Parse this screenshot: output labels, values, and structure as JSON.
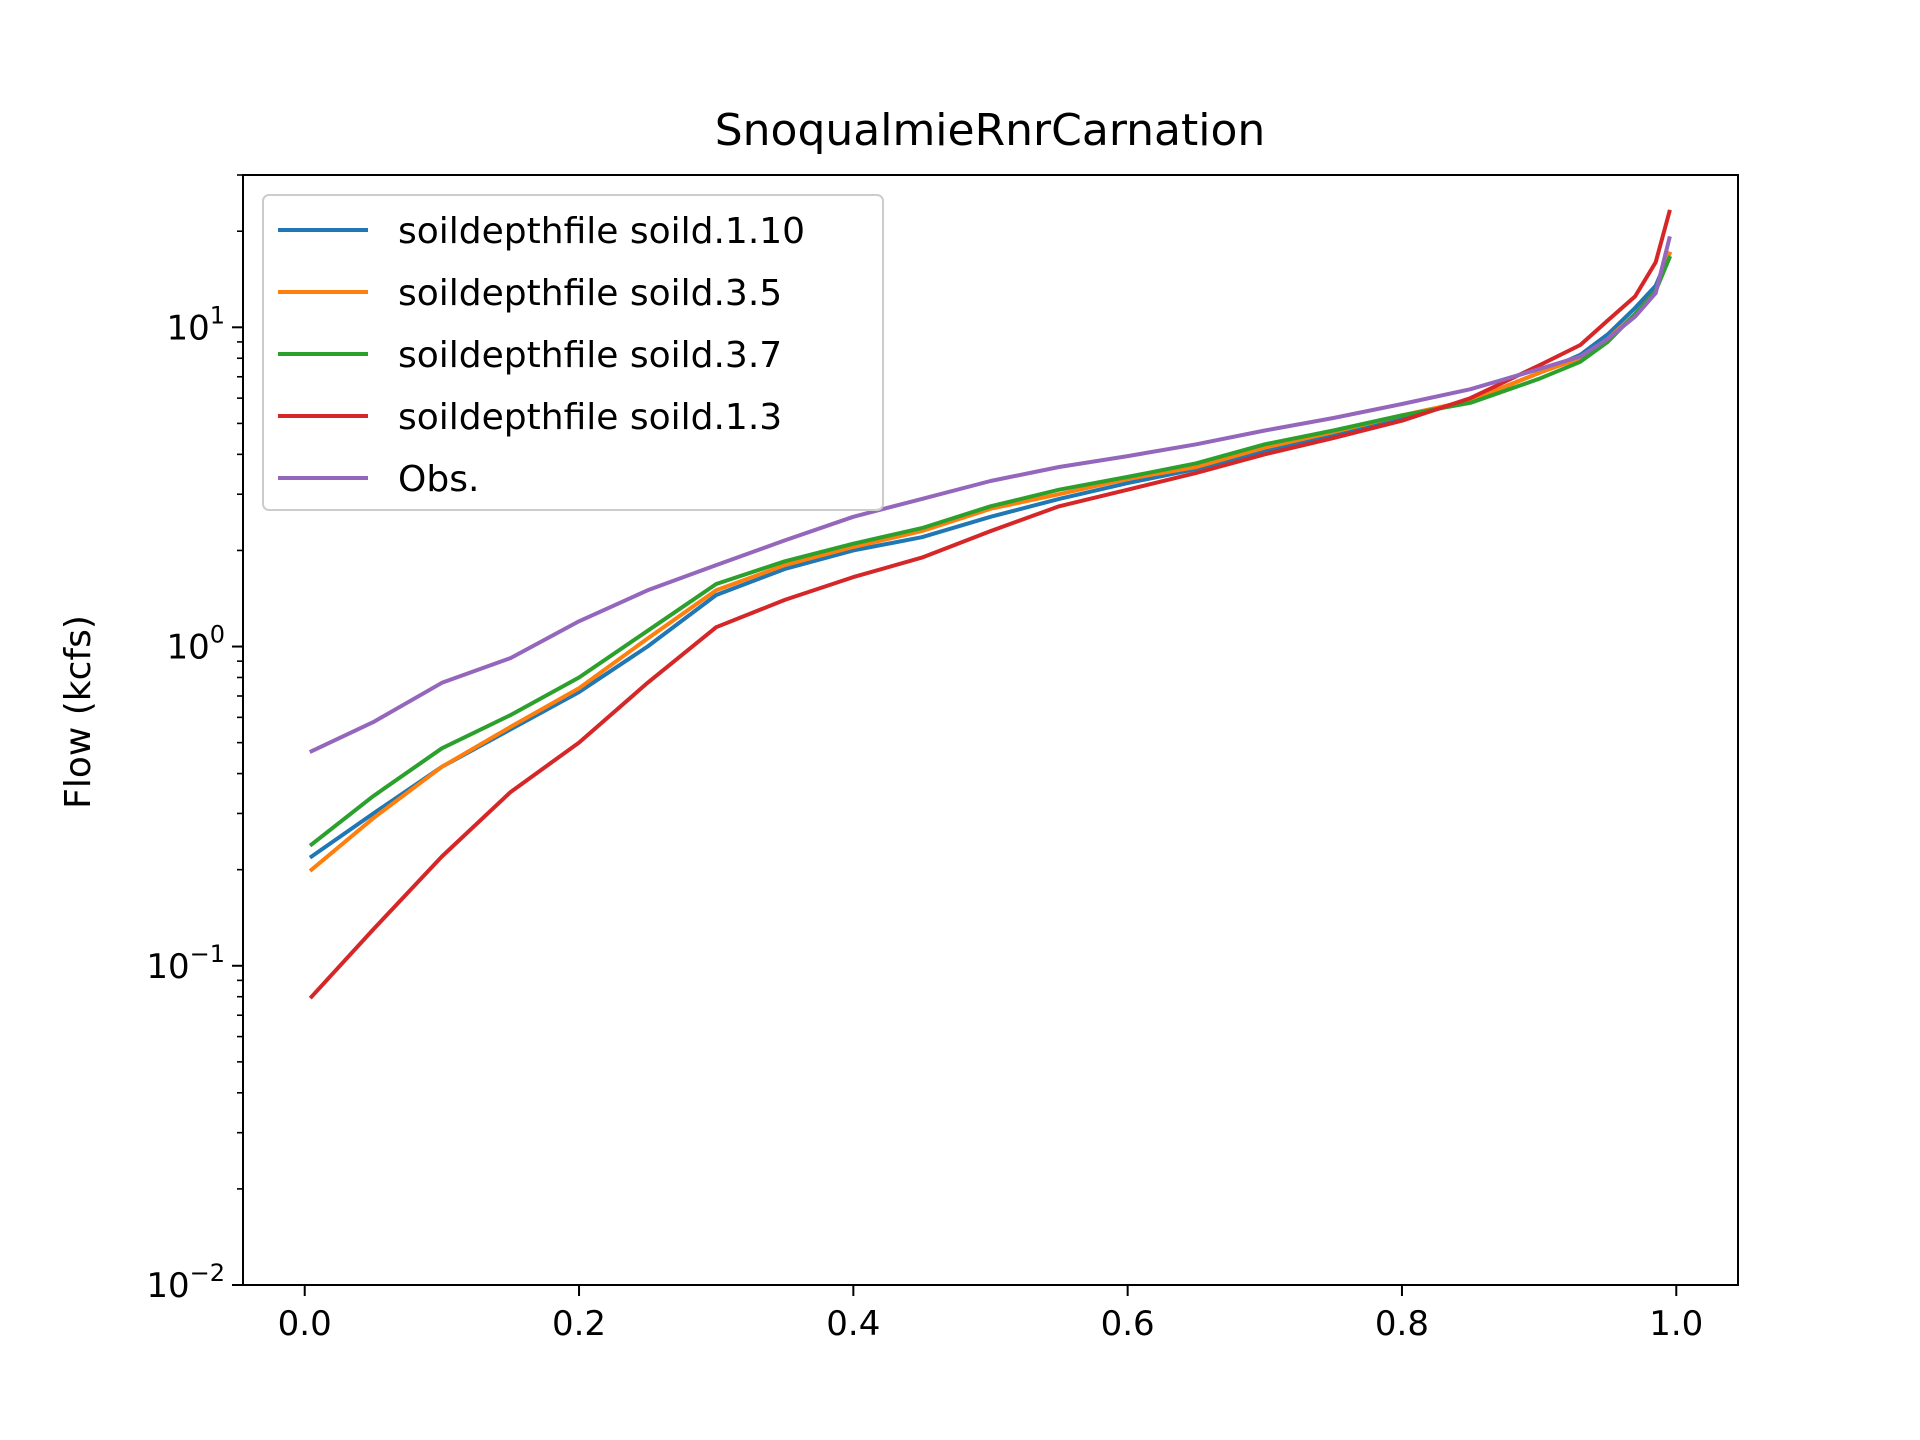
{
  "chart_data": {
    "type": "line",
    "title": "SnoqualmieRnrCarnation",
    "xlabel": "",
    "ylabel": "Flow (kcfs)",
    "yscale": "log",
    "xlim": [
      -0.045,
      1.045
    ],
    "ylim": [
      0.01,
      30
    ],
    "x_ticks": [
      {
        "value": 0.0,
        "label": "0.0"
      },
      {
        "value": 0.2,
        "label": "0.2"
      },
      {
        "value": 0.4,
        "label": "0.4"
      },
      {
        "value": 0.6,
        "label": "0.6"
      },
      {
        "value": 0.8,
        "label": "0.8"
      },
      {
        "value": 1.0,
        "label": "1.0"
      }
    ],
    "y_ticks": [
      {
        "value": 0.01,
        "base": "10",
        "exp": "−2"
      },
      {
        "value": 0.1,
        "base": "10",
        "exp": "−1"
      },
      {
        "value": 1,
        "base": "10",
        "exp": "0"
      },
      {
        "value": 10,
        "base": "10",
        "exp": "1"
      }
    ],
    "grid": false,
    "legend_position": "top-left",
    "x": [
      0.005,
      0.05,
      0.1,
      0.15,
      0.2,
      0.25,
      0.3,
      0.35,
      0.4,
      0.45,
      0.5,
      0.55,
      0.6,
      0.65,
      0.7,
      0.75,
      0.8,
      0.85,
      0.9,
      0.93,
      0.95,
      0.97,
      0.985,
      0.995
    ],
    "series": [
      {
        "name": "soildepthfile soild.1.10",
        "color": "#1f77b4",
        "values": [
          0.22,
          0.3,
          0.42,
          0.55,
          0.72,
          1.0,
          1.45,
          1.75,
          2.0,
          2.2,
          2.55,
          2.9,
          3.25,
          3.6,
          4.1,
          4.6,
          5.2,
          5.9,
          7.2,
          8.2,
          9.5,
          11.5,
          13.5,
          17.0
        ]
      },
      {
        "name": "soildepthfile soild.3.5",
        "color": "#ff7f0e",
        "values": [
          0.2,
          0.29,
          0.42,
          0.56,
          0.74,
          1.06,
          1.5,
          1.8,
          2.05,
          2.3,
          2.7,
          3.0,
          3.35,
          3.65,
          4.2,
          4.7,
          5.3,
          5.9,
          7.2,
          8.0,
          9.2,
          11.0,
          13.0,
          17.0
        ]
      },
      {
        "name": "soildepthfile soild.3.7",
        "color": "#2ca02c",
        "values": [
          0.24,
          0.34,
          0.48,
          0.61,
          0.8,
          1.12,
          1.57,
          1.85,
          2.1,
          2.35,
          2.75,
          3.1,
          3.4,
          3.75,
          4.3,
          4.75,
          5.3,
          5.8,
          6.9,
          7.8,
          9.0,
          11.0,
          13.0,
          16.5
        ]
      },
      {
        "name": "soildepthfile soild.1.3",
        "color": "#d62728",
        "values": [
          0.08,
          0.13,
          0.22,
          0.35,
          0.5,
          0.77,
          1.15,
          1.4,
          1.65,
          1.9,
          2.3,
          2.75,
          3.1,
          3.5,
          4.0,
          4.5,
          5.1,
          6.0,
          7.6,
          8.8,
          10.5,
          12.5,
          16.0,
          23.0
        ]
      },
      {
        "name": "Obs.",
        "color": "#9467bd",
        "values": [
          0.47,
          0.58,
          0.77,
          0.92,
          1.2,
          1.5,
          1.8,
          2.15,
          2.55,
          2.9,
          3.3,
          3.65,
          3.95,
          4.3,
          4.75,
          5.2,
          5.75,
          6.4,
          7.4,
          8.1,
          9.2,
          10.8,
          12.8,
          19.0
        ]
      }
    ]
  }
}
